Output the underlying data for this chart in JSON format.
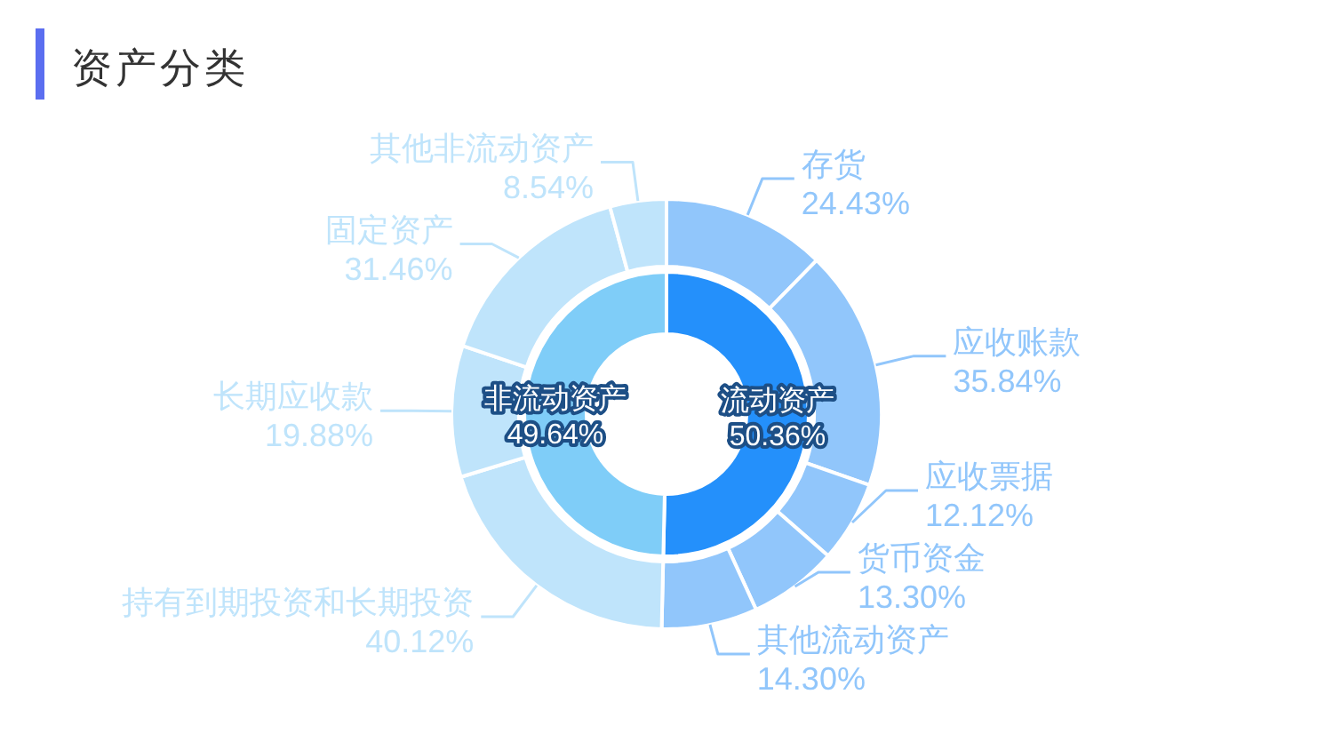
{
  "chart_data": [
    {
      "type": "donut",
      "title": "资产分类",
      "categories": [
        "流动资产",
        "非流动资产"
      ],
      "values": [
        50.36,
        49.64
      ],
      "value_labels": [
        "50.36%",
        "49.64%"
      ],
      "colors": [
        "#2490fb",
        "#7fcdf8"
      ]
    },
    {
      "type": "donut",
      "categories": [
        "存货",
        "应收账款",
        "应收票据",
        "货币资金",
        "其他流动资产",
        "持有到期投资和长期投资",
        "长期应收款",
        "固定资产",
        "其他非流动资产"
      ],
      "values": [
        24.43,
        35.84,
        12.12,
        13.3,
        14.3,
        40.12,
        19.88,
        31.46,
        8.54
      ],
      "value_labels": [
        "24.43%",
        "35.84%",
        "12.12%",
        "13.30%",
        "14.30%",
        "40.12%",
        "19.88%",
        "31.46%",
        "8.54%"
      ],
      "colors": [
        "#91c6fb",
        "#91c6fb",
        "#91c6fb",
        "#91c6fb",
        "#91c6fb",
        "#bfe4fb",
        "#bfe4fb",
        "#bfe4fb",
        "#bfe4fb"
      ]
    }
  ]
}
